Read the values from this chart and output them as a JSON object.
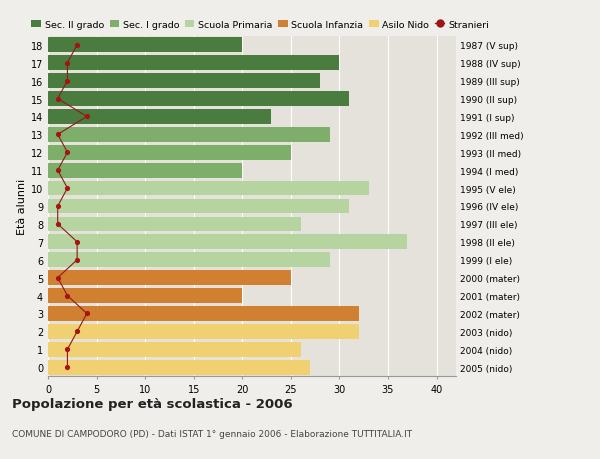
{
  "ages": [
    18,
    17,
    16,
    15,
    14,
    13,
    12,
    11,
    10,
    9,
    8,
    7,
    6,
    5,
    4,
    3,
    2,
    1,
    0
  ],
  "bar_values": [
    20,
    30,
    28,
    31,
    23,
    29,
    25,
    20,
    33,
    31,
    26,
    37,
    29,
    25,
    20,
    32,
    32,
    26,
    27
  ],
  "bar_colors": [
    "#4a7c3f",
    "#4a7c3f",
    "#4a7c3f",
    "#4a7c3f",
    "#4a7c3f",
    "#7daf6a",
    "#7daf6a",
    "#7daf6a",
    "#b5d4a0",
    "#b5d4a0",
    "#b5d4a0",
    "#b5d4a0",
    "#b5d4a0",
    "#d08030",
    "#d08030",
    "#d08030",
    "#f0d070",
    "#f0d070",
    "#f0d070"
  ],
  "stranieri_values": [
    3,
    2,
    2,
    1,
    4,
    1,
    2,
    1,
    2,
    1,
    1,
    3,
    3,
    1,
    2,
    4,
    3,
    2,
    2
  ],
  "right_labels": [
    "1987 (V sup)",
    "1988 (IV sup)",
    "1989 (III sup)",
    "1990 (II sup)",
    "1991 (I sup)",
    "1992 (III med)",
    "1993 (II med)",
    "1994 (I med)",
    "1995 (V ele)",
    "1996 (IV ele)",
    "1997 (III ele)",
    "1998 (II ele)",
    "1999 (I ele)",
    "2000 (mater)",
    "2001 (mater)",
    "2002 (mater)",
    "2003 (nido)",
    "2004 (nido)",
    "2005 (nido)"
  ],
  "ylabel_left": "Età alunni",
  "title": "Popolazione per età scolastica - 2006",
  "subtitle": "COMUNE DI CAMPODORO (PD) - Dati ISTAT 1° gennaio 2006 - Elaborazione TUTTITALIA.IT",
  "xlim": [
    0,
    42
  ],
  "xticks": [
    0,
    5,
    10,
    15,
    20,
    25,
    30,
    35,
    40
  ],
  "legend_labels": [
    "Sec. II grado",
    "Sec. I grado",
    "Scuola Primaria",
    "Scuola Infanzia",
    "Asilo Nido",
    "Stranieri"
  ],
  "legend_colors": [
    "#4a7c3f",
    "#7daf6a",
    "#b5d4a0",
    "#d08030",
    "#f0d070",
    "#aa1111"
  ],
  "bg_color": "#f0eeea",
  "bar_bg_color": "#e5e2db",
  "grid_color": "#ffffff",
  "stranieri_line_color": "#8b1a1a",
  "stranieri_dot_color": "#aa1111"
}
